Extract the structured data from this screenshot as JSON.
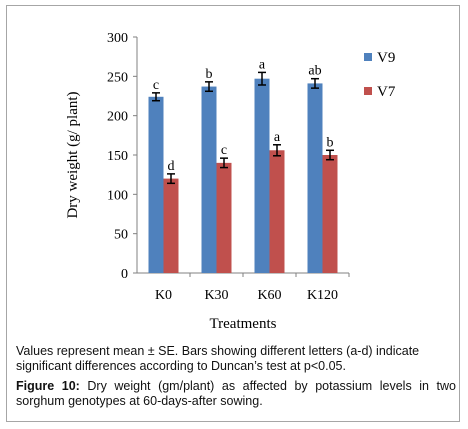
{
  "chart_data": {
    "type": "bar",
    "categories": [
      "K0",
      "K30",
      "K60",
      "K120"
    ],
    "series": [
      {
        "name": "V9",
        "color": "#4f81bd",
        "values": [
          224,
          237,
          247,
          241
        ],
        "errors": [
          5,
          6,
          8,
          6
        ],
        "letters": [
          "c",
          "b",
          "a",
          "ab"
        ]
      },
      {
        "name": "V7",
        "color": "#c0504d",
        "values": [
          120,
          140,
          156,
          150
        ],
        "errors": [
          6,
          6,
          7,
          6
        ],
        "letters": [
          "d",
          "c",
          "a",
          "b"
        ]
      }
    ],
    "xlabel": "Treatments",
    "ylabel": "Dry  weight (g/ plant)",
    "ylim": [
      0,
      300
    ],
    "yticks": [
      0,
      50,
      100,
      150,
      200,
      250,
      300
    ],
    "legend_position": "right"
  },
  "note": "Values represent mean ± SE. Bars showing different  letters (a-d) indicate significant differences according to Duncan’s test at p<0.05.",
  "caption": {
    "label": "Figure 10:",
    "text": " Dry weight (gm/plant) as affected by potassium levels in two sorghum genotypes at 60-days-after sowing."
  }
}
